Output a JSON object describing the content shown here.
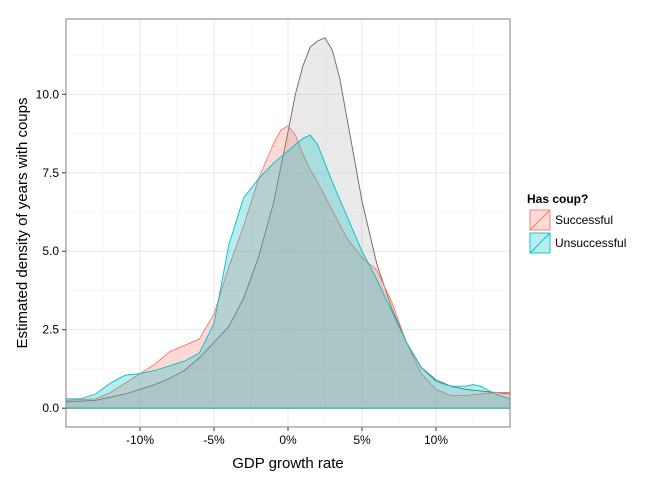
{
  "chart_data": {
    "type": "area",
    "title": "",
    "xlabel": "GDP growth rate",
    "ylabel": "Estimated density of years with coups",
    "xlim": [
      -15,
      15
    ],
    "ylim": [
      -0.6,
      12.4
    ],
    "x_ticks": [
      -10,
      -5,
      0,
      5,
      10
    ],
    "x_tick_labels": [
      "-10%",
      "-5%",
      "0%",
      "5%",
      "10%"
    ],
    "y_ticks": [
      0,
      2.5,
      5,
      7.5,
      10
    ],
    "y_tick_labels": [
      "0.0",
      "2.5",
      "5.0",
      "7.5",
      "10.0"
    ],
    "grid": true,
    "legend": {
      "title": "Has coup?",
      "position": "right",
      "entries": [
        "Successful",
        "Unsuccessful"
      ]
    },
    "series": [
      {
        "name": "",
        "fill": "#b3b3b3",
        "stroke": "#666666",
        "points": [
          [
            -15,
            0.2
          ],
          [
            -13,
            0.25
          ],
          [
            -12,
            0.35
          ],
          [
            -11,
            0.45
          ],
          [
            -10,
            0.6
          ],
          [
            -9,
            0.75
          ],
          [
            -8,
            0.95
          ],
          [
            -7,
            1.2
          ],
          [
            -6,
            1.6
          ],
          [
            -5,
            2.1
          ],
          [
            -4,
            2.6
          ],
          [
            -3,
            3.5
          ],
          [
            -2,
            4.8
          ],
          [
            -1,
            6.5
          ],
          [
            0,
            8.8
          ],
          [
            0.5,
            10
          ],
          [
            1,
            10.9
          ],
          [
            1.5,
            11.5
          ],
          [
            2,
            11.7
          ],
          [
            2.5,
            11.8
          ],
          [
            3,
            11.4
          ],
          [
            3.5,
            10.5
          ],
          [
            4,
            9.2
          ],
          [
            5,
            6.6
          ],
          [
            6,
            4.6
          ],
          [
            7,
            3.2
          ],
          [
            8,
            2.1
          ],
          [
            9,
            1.3
          ],
          [
            10,
            0.9
          ],
          [
            11,
            0.7
          ],
          [
            12,
            0.6
          ],
          [
            13,
            0.55
          ],
          [
            14,
            0.5
          ],
          [
            15,
            0.45
          ]
        ]
      },
      {
        "name": "Successful",
        "fill": "#f8766d",
        "stroke": "#f8766d",
        "points": [
          [
            -15,
            0.25
          ],
          [
            -13,
            0.3
          ],
          [
            -12,
            0.5
          ],
          [
            -11,
            0.8
          ],
          [
            -10,
            1.1
          ],
          [
            -9,
            1.4
          ],
          [
            -8,
            1.8
          ],
          [
            -7,
            2.0
          ],
          [
            -6,
            2.2
          ],
          [
            -5,
            3.0
          ],
          [
            -4,
            4.5
          ],
          [
            -3,
            5.8
          ],
          [
            -2,
            7.3
          ],
          [
            -1,
            8.4
          ],
          [
            -0.5,
            8.85
          ],
          [
            0,
            9.0
          ],
          [
            0.5,
            8.7
          ],
          [
            1,
            8.1
          ],
          [
            1.5,
            7.6
          ],
          [
            2,
            7.2
          ],
          [
            3,
            6.3
          ],
          [
            4,
            5.4
          ],
          [
            5,
            4.8
          ],
          [
            6,
            4.4
          ],
          [
            7,
            3.4
          ],
          [
            8,
            2.1
          ],
          [
            9,
            1.1
          ],
          [
            10,
            0.6
          ],
          [
            11,
            0.4
          ],
          [
            12,
            0.4
          ],
          [
            13,
            0.45
          ],
          [
            14,
            0.5
          ],
          [
            15,
            0.5
          ]
        ]
      },
      {
        "name": "Unsuccessful",
        "fill": "#00bfc4",
        "stroke": "#00bfc4",
        "points": [
          [
            -15,
            0.3
          ],
          [
            -14,
            0.3
          ],
          [
            -13,
            0.45
          ],
          [
            -12,
            0.8
          ],
          [
            -11,
            1.05
          ],
          [
            -10,
            1.1
          ],
          [
            -9,
            1.2
          ],
          [
            -8,
            1.35
          ],
          [
            -7,
            1.5
          ],
          [
            -6,
            1.75
          ],
          [
            -5,
            2.7
          ],
          [
            -4,
            5.2
          ],
          [
            -3,
            6.7
          ],
          [
            -2,
            7.3
          ],
          [
            -1,
            7.8
          ],
          [
            0,
            8.2
          ],
          [
            1,
            8.6
          ],
          [
            1.5,
            8.7
          ],
          [
            2,
            8.4
          ],
          [
            3,
            7.2
          ],
          [
            4,
            6.1
          ],
          [
            5,
            5.0
          ],
          [
            6,
            4.1
          ],
          [
            7,
            3.1
          ],
          [
            8,
            2.1
          ],
          [
            9,
            1.3
          ],
          [
            10,
            0.85
          ],
          [
            11,
            0.7
          ],
          [
            12,
            0.7
          ],
          [
            12.5,
            0.75
          ],
          [
            13,
            0.7
          ],
          [
            14,
            0.45
          ],
          [
            15,
            0.3
          ]
        ]
      }
    ]
  }
}
